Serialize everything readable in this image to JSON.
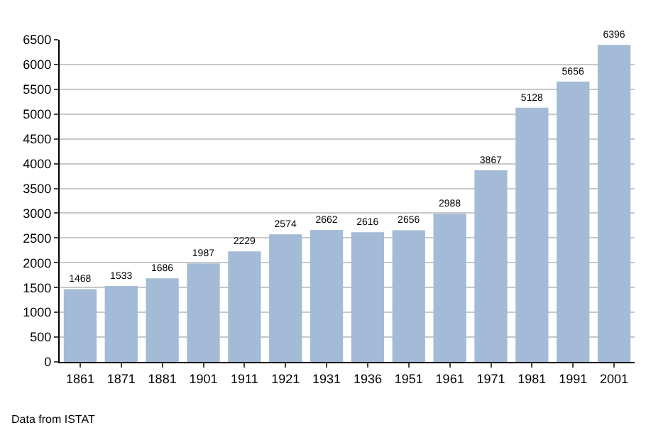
{
  "chart_data": {
    "type": "bar",
    "categories": [
      "1861",
      "1871",
      "1881",
      "1901",
      "1911",
      "1921",
      "1931",
      "1936",
      "1951",
      "1961",
      "1971",
      "1981",
      "1991",
      "2001"
    ],
    "values": [
      1468,
      1533,
      1686,
      1987,
      2229,
      2574,
      2662,
      2616,
      2656,
      2988,
      3867,
      5128,
      5656,
      6396
    ],
    "color": "#a3bbd6",
    "ylim": [
      0,
      6500
    ],
    "yticks": [
      0,
      500,
      1000,
      1500,
      2000,
      2500,
      3000,
      3500,
      4000,
      4500,
      5000,
      5500,
      6000,
      6500
    ],
    "grid": "y",
    "data_labels": true,
    "annotations": [
      "Data from ISTAT"
    ]
  }
}
